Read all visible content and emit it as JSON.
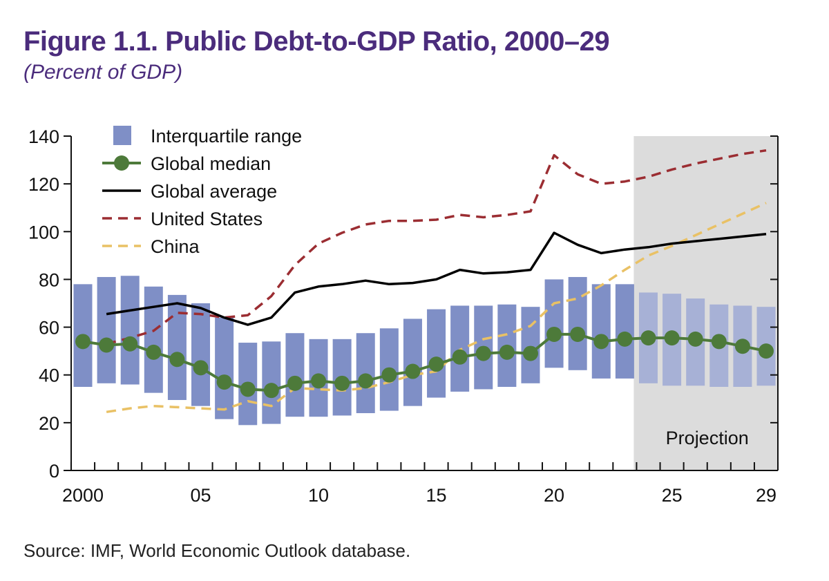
{
  "title": "Figure 1.1. Public Debt-to-GDP Ratio, 2000–29",
  "subtitle": "(Percent of GDP)",
  "source": "Source: IMF, World Economic Outlook database.",
  "colors": {
    "title": "#4b2c7c",
    "iqr": "#7f8fc6",
    "iqr_projection": "#a7b1d6",
    "median": "#4d7a3a",
    "average": "#000000",
    "united_states": "#9b2d32",
    "china": "#e9c165",
    "projection_shade": "#dcdcdc"
  },
  "chart_data": {
    "type": "line",
    "x": [
      2000,
      2001,
      2002,
      2003,
      2004,
      2005,
      2006,
      2007,
      2008,
      2009,
      2010,
      2011,
      2012,
      2013,
      2014,
      2015,
      2016,
      2017,
      2018,
      2019,
      2020,
      2021,
      2022,
      2023,
      2024,
      2025,
      2026,
      2027,
      2028,
      2029
    ],
    "x_tick_values": [
      2000,
      2005,
      2010,
      2015,
      2020,
      2025,
      2029
    ],
    "x_tick_labels": [
      "2000",
      "05",
      "10",
      "15",
      "20",
      "25",
      "29"
    ],
    "ylim": [
      0,
      140
    ],
    "y_ticks": [
      0,
      20,
      40,
      60,
      80,
      100,
      120,
      140
    ],
    "xlim": [
      2000,
      2029
    ],
    "projection": {
      "label": "Projection",
      "start": 2023.5,
      "end": 2029.5
    },
    "interquartile_range": {
      "name": "Interquartile range",
      "low": [
        35,
        36.5,
        36,
        32.5,
        29.5,
        27,
        21.5,
        19,
        19.5,
        22.5,
        22.5,
        23,
        24,
        25,
        27,
        30.5,
        33,
        34,
        35,
        36.5,
        43,
        42,
        38.5,
        38.5,
        36.5,
        35.5,
        35.5,
        35,
        35,
        35.5
      ],
      "high": [
        78,
        81,
        81.5,
        77,
        73.5,
        70,
        64,
        53.5,
        54,
        57.5,
        55,
        55,
        57.5,
        59.5,
        63.5,
        67.5,
        69,
        69,
        69.5,
        68.5,
        80,
        81,
        78,
        78,
        74.5,
        74,
        72,
        69.5,
        69,
        68.5
      ]
    },
    "series": [
      {
        "name": "Global median",
        "values": [
          54,
          52.5,
          53,
          49.5,
          46.5,
          43,
          37,
          34,
          33.5,
          36.5,
          37.5,
          36.5,
          37.5,
          40,
          41.5,
          44.5,
          47.5,
          49,
          49.5,
          49,
          57,
          57,
          54,
          55,
          55.5,
          55.5,
          55,
          54,
          52,
          50
        ]
      },
      {
        "name": "Global average",
        "values": [
          null,
          65.5,
          67,
          68.5,
          70,
          68,
          64,
          61,
          64,
          74.5,
          77,
          78,
          79.5,
          78,
          78.5,
          80,
          84,
          82.5,
          83,
          84,
          99.5,
          94.5,
          91,
          92.5,
          93.5,
          95,
          96,
          97,
          98,
          99
        ]
      },
      {
        "name": "United States",
        "values": [
          null,
          53,
          55.5,
          58.5,
          66,
          65.5,
          64,
          65,
          73,
          86,
          95,
          99.5,
          103,
          104.5,
          104.5,
          105,
          107,
          106,
          107,
          108.5,
          132,
          124,
          120,
          121,
          123,
          126,
          128.5,
          130.5,
          132.5,
          134
        ]
      },
      {
        "name": "China",
        "values": [
          null,
          24.5,
          26,
          27,
          26.5,
          26,
          25.5,
          29,
          27,
          34.5,
          34,
          33.5,
          34.5,
          37,
          40,
          41.5,
          50.5,
          55,
          57,
          60.5,
          70,
          72,
          77.5,
          84,
          90,
          94,
          98.5,
          103,
          107.5,
          112
        ]
      }
    ]
  }
}
